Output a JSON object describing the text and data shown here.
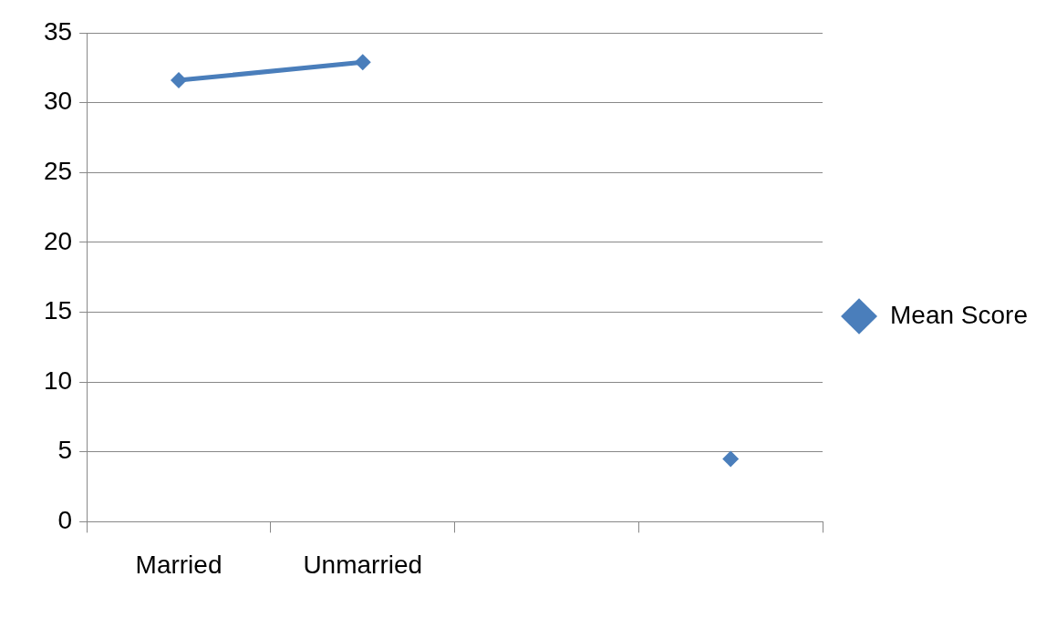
{
  "chart_data": {
    "type": "line",
    "categories": [
      "Married",
      "Unmarried",
      null,
      null
    ],
    "series": [
      {
        "name": "Mean Score",
        "color": "#4a7ebb",
        "values": [
          31.6,
          32.9,
          null,
          4.5
        ]
      }
    ],
    "ylim": [
      0,
      35
    ],
    "yticks": [
      0,
      5,
      10,
      15,
      20,
      25,
      30,
      35
    ],
    "grid": "y",
    "legend": "right",
    "marker": "diamond",
    "line_style": "solid"
  }
}
